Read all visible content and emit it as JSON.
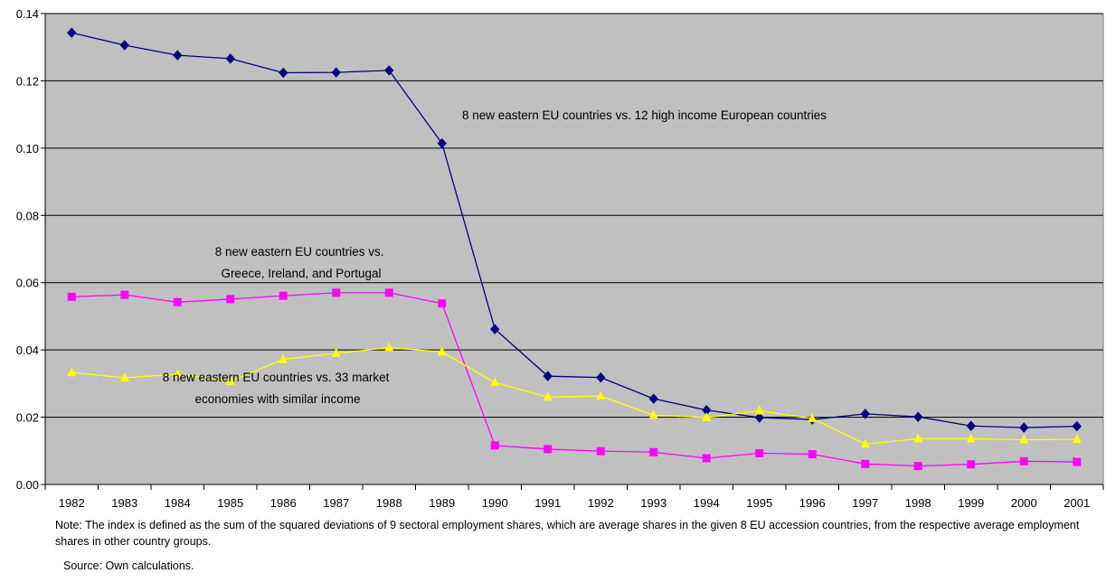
{
  "chart_data": {
    "type": "line",
    "x": [
      "1982",
      "1983",
      "1984",
      "1985",
      "1986",
      "1987",
      "1988",
      "1989",
      "1990",
      "1991",
      "1992",
      "1993",
      "1994",
      "1995",
      "1996",
      "1997",
      "1998",
      "1999",
      "2000",
      "2001"
    ],
    "ylim": [
      0,
      0.14
    ],
    "yticks": [
      "0.00",
      "0.02",
      "0.04",
      "0.06",
      "0.08",
      "0.10",
      "0.12",
      "0.14"
    ],
    "grid": true,
    "plot_background": "#c0c0c0",
    "series": [
      {
        "name": "8 new eastern EU countries vs. 12 high income European countries",
        "color": "#000080",
        "marker": "diamond",
        "values": [
          0.1343,
          0.1306,
          0.1276,
          0.1266,
          0.1224,
          0.1225,
          0.1231,
          0.1014,
          0.0462,
          0.0322,
          0.0318,
          0.0255,
          0.0221,
          0.0199,
          0.0193,
          0.021,
          0.0201,
          0.0174,
          0.0169,
          0.0173
        ]
      },
      {
        "name": "8 new eastern EU countries vs. Greece, Ireland, and Portugal",
        "color": "#ff00ff",
        "marker": "square",
        "values": [
          0.0558,
          0.0564,
          0.0542,
          0.0551,
          0.0561,
          0.057,
          0.057,
          0.0538,
          0.0116,
          0.0105,
          0.0099,
          0.0096,
          0.0078,
          0.0093,
          0.009,
          0.0061,
          0.0055,
          0.006,
          0.0069,
          0.0067
        ]
      },
      {
        "name": "8 new eastern EU countries vs. 33 market economies with similar income",
        "color": "#ffff00",
        "marker": "triangle",
        "values": [
          0.0333,
          0.0317,
          0.0328,
          0.0307,
          0.0372,
          0.039,
          0.0407,
          0.0394,
          0.0303,
          0.026,
          0.0263,
          0.0206,
          0.0199,
          0.0219,
          0.0196,
          0.012,
          0.0136,
          0.0136,
          0.0133,
          0.0134
        ]
      }
    ],
    "annotations": [
      {
        "lines": [
          "8 new eastern EU countries vs. 12 high income European countries"
        ]
      },
      {
        "lines": [
          "8 new eastern EU countries vs.",
          "Greece, Ireland, and Portugal"
        ]
      },
      {
        "lines": [
          "8 new eastern EU countries vs. 33 market",
          "economies with similar income"
        ]
      }
    ]
  },
  "note": "Note: The index is defined as the sum of the squared deviations of 9 sectoral employment shares, which are average shares in the given 8 EU accession countries, from the respective average employment shares in other country groups.",
  "source": "Source: Own calculations."
}
